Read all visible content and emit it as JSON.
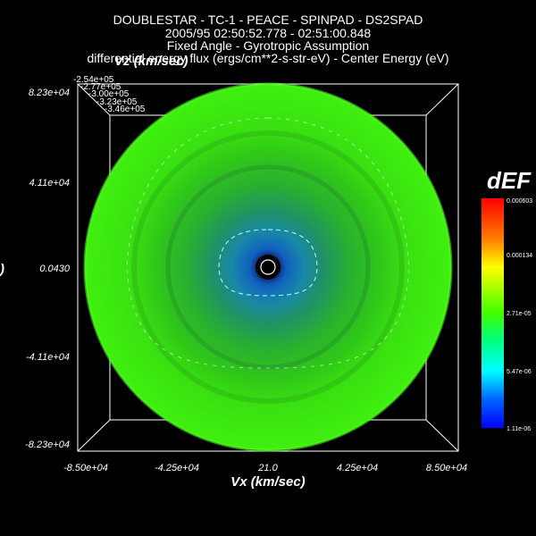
{
  "title": {
    "line1": "DOUBLESTAR - TC-1 - PEACE - SPINPAD - DS2SPAD",
    "line2": "2005/95 02:50:52.778 - 02:51:00.848",
    "line3": "Fixed Angle - Gyrotropic Assumption",
    "line4": "differential energy flux (ergs/cm**2-s-str-eV) - Center Energy (eV)"
  },
  "chart_data": {
    "type": "heatmap",
    "description_of_plot": "",
    "xlabel": "Vx (km/sec)",
    "ylabel": "Vz (km/sec)",
    "xlim": [
      -85000,
      85000
    ],
    "ylim": [
      -82300,
      82300
    ],
    "x_ticks": [
      "-8.50e+04",
      "-4.25e+04",
      "21.0",
      "4.25e+04",
      "8.50e+04"
    ],
    "y_ticks": [
      "8.23e+04",
      "4.11e+04",
      "0.0430",
      "-4.11e+04",
      "-8.23e+04"
    ],
    "y_side_fragment": ")",
    "colorbar": {
      "title": "dEF",
      "ticks": [
        "0.000603",
        "0.000134",
        "2.71e-05",
        "5.47e-06",
        "1.11e-06"
      ]
    },
    "contour_levels": [
      "-2.54e+05",
      "-2.77e+05",
      "-3.00e+05",
      "-3.23e+05",
      "-3.46e+05"
    ],
    "colors": {
      "background": "#000000",
      "outer_shell": "#40ff10",
      "mid_shell": "#30d010",
      "inner_ring": "#20a040",
      "core": "#1070c0",
      "center": "#000000"
    }
  }
}
